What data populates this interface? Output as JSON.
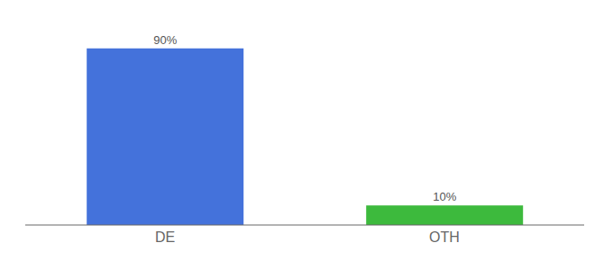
{
  "chart_data": {
    "type": "bar",
    "categories": [
      "DE",
      "OTH"
    ],
    "values": [
      90,
      10
    ],
    "value_labels": [
      "90%",
      "10%"
    ],
    "data_labels": true,
    "colors": [
      "#4472db",
      "#3dba3d"
    ],
    "ylim": [
      0,
      100
    ],
    "grid": false,
    "tick_labels": "x"
  }
}
